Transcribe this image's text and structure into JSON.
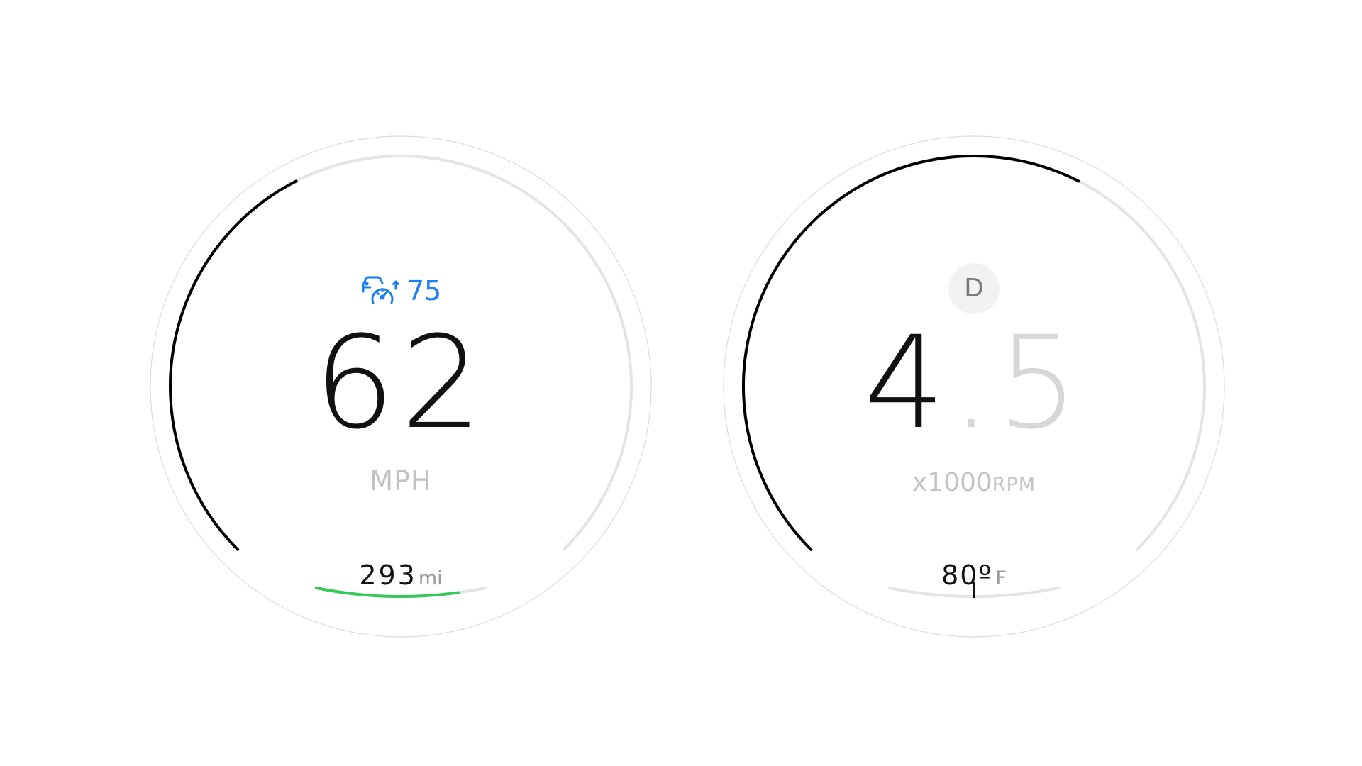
{
  "speedometer": {
    "cruise_set_speed": "75",
    "speed_value": "62",
    "speed_unit": "MPH",
    "range_value": "293",
    "range_unit": "mi",
    "speed_fill_fraction": 0.4,
    "range_fill_fraction": 0.84,
    "cruise_icon": "cruise-control-icon",
    "colors": {
      "cruise": "#1a7ff2",
      "range_fill": "#34c759",
      "track": "#e4e4e4",
      "fill": "#000000"
    }
  },
  "tachometer": {
    "gear": "D",
    "rpm_integer": "4",
    "rpm_decimal_point": ".",
    "rpm_fraction": "5",
    "rpm_unit_prefix": "x1000",
    "rpm_unit_suffix": "RPM",
    "temperature_value": "80º",
    "temperature_unit": "F",
    "rpm_fill_fraction": 0.6,
    "temperature_fraction": 0.5,
    "colors": {
      "track": "#e4e4e4",
      "fill": "#000000",
      "gear_badge_bg": "#f2f2f2"
    }
  }
}
